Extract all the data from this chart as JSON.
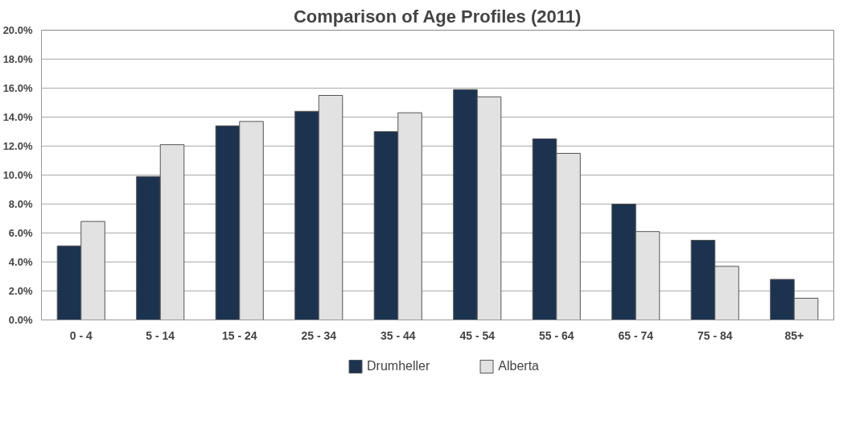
{
  "chart_data": {
    "type": "bar",
    "title": "Comparison of Age Profiles (2011)",
    "categories": [
      "0 - 4",
      "5 - 14",
      "15 - 24",
      "25 - 34",
      "35 - 44",
      "45 - 54",
      "55 - 64",
      "65 - 74",
      "75 - 84",
      "85+"
    ],
    "series": [
      {
        "name": "Drumheller",
        "color": "#1c3350",
        "values": [
          5.1,
          9.9,
          13.4,
          14.4,
          13.0,
          15.9,
          12.5,
          8.0,
          5.5,
          2.8
        ]
      },
      {
        "name": "Alberta",
        "color": "#e2e2e2",
        "values": [
          6.8,
          12.1,
          13.7,
          15.5,
          14.3,
          15.4,
          11.5,
          6.1,
          3.7,
          1.5
        ]
      }
    ],
    "ylim": [
      0,
      20
    ],
    "yticks": [
      {
        "value": 0,
        "label": "0.0%"
      },
      {
        "value": 2,
        "label": "2.0%"
      },
      {
        "value": 4,
        "label": "4.0%"
      },
      {
        "value": 6,
        "label": "6.0%"
      },
      {
        "value": 8,
        "label": "8.0%"
      },
      {
        "value": 10,
        "label": "10.0%"
      },
      {
        "value": 12,
        "label": "12.0%"
      },
      {
        "value": 14,
        "label": "14.0%"
      },
      {
        "value": 16,
        "label": "16.0%"
      },
      {
        "value": 18,
        "label": "18.0%"
      },
      {
        "value": 20,
        "label": "20.0%"
      }
    ],
    "grid": "y",
    "legend": "bottom"
  }
}
